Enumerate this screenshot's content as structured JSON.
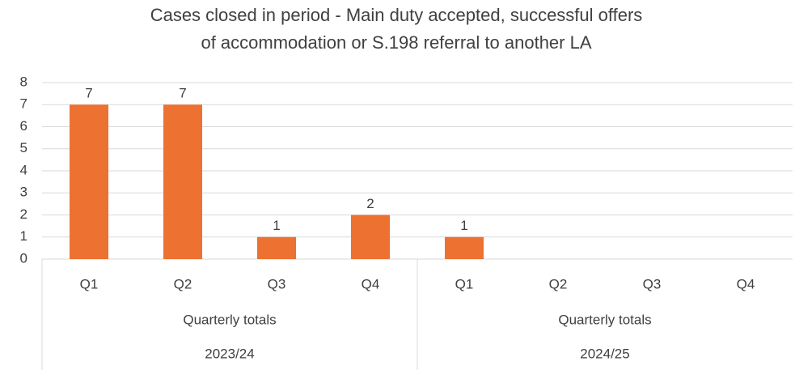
{
  "chart_data": {
    "type": "bar",
    "title": [
      "Cases closed in period - Main duty accepted, successful offers",
      "of accommodation or S.198 referral to another LA"
    ],
    "color": "#ed7131",
    "ylim": [
      0,
      8
    ],
    "yticks": [
      0,
      1,
      2,
      3,
      4,
      5,
      6,
      7,
      8
    ],
    "grid": true,
    "groups": [
      {
        "year": "2023/24",
        "period": "Quarterly totals",
        "categories": [
          "Q1",
          "Q2",
          "Q3",
          "Q4"
        ],
        "values": [
          7,
          7,
          1,
          2
        ]
      },
      {
        "year": "2024/25",
        "period": "Quarterly totals",
        "categories": [
          "Q1",
          "Q2",
          "Q3",
          "Q4"
        ],
        "values": [
          1,
          null,
          null,
          null
        ]
      }
    ]
  }
}
